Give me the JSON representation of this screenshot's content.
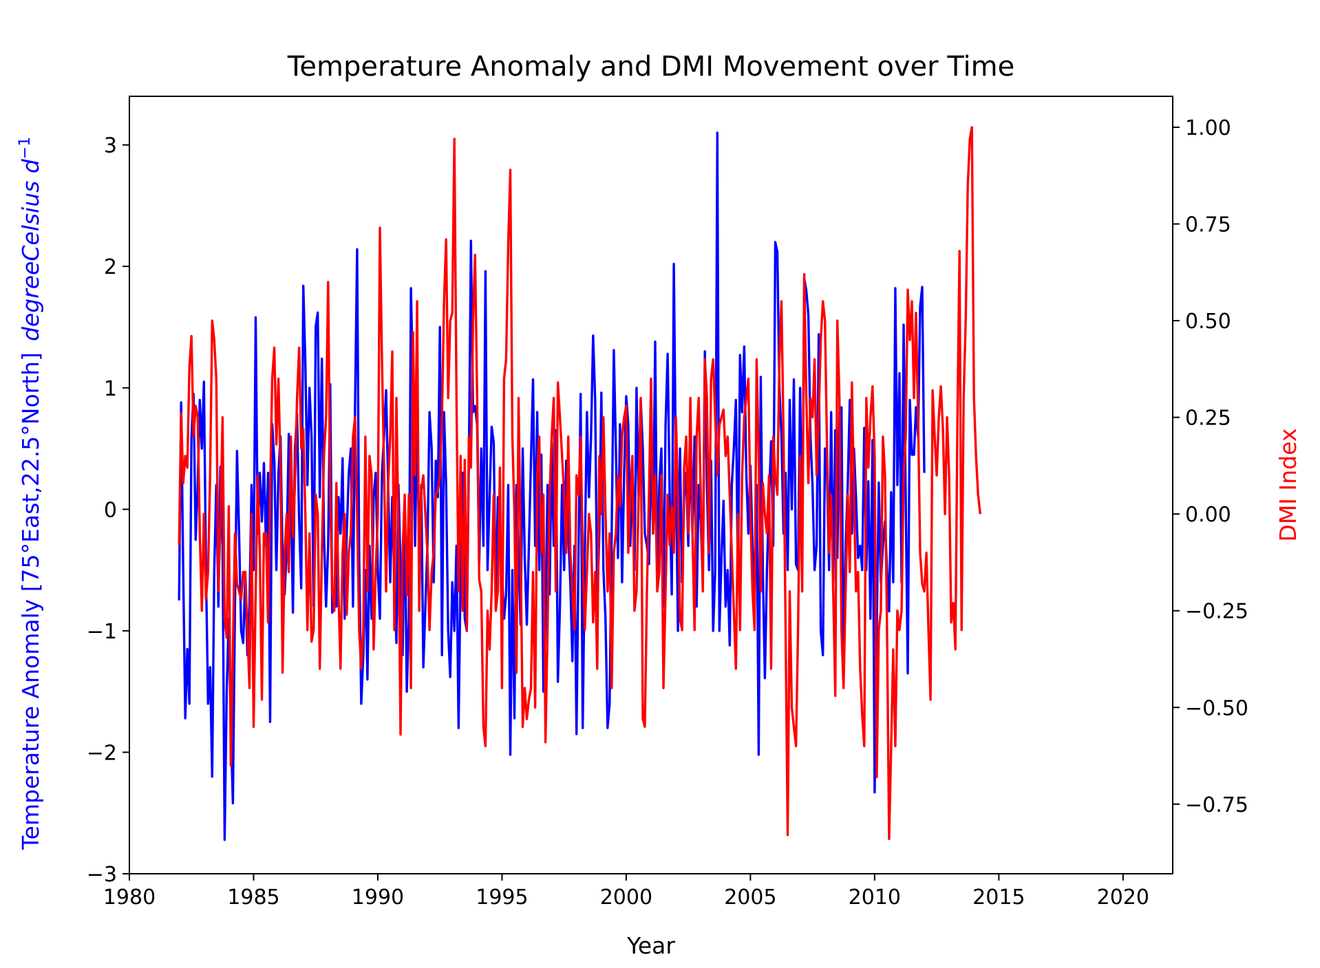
{
  "chart_data": {
    "type": "line",
    "title": "Temperature Anomaly and DMI Movement over Time",
    "xlabel": "Year",
    "ylabel_left": "Temperature Anomaly [75°East,22.5°North]",
    "ylabel_left_unit": "degreeCelsius d",
    "ylabel_left_unit_exp": "−1",
    "ylabel_right": "DMI Index",
    "xlim": [
      1980,
      2022
    ],
    "ylim_left": [
      -3,
      3.4
    ],
    "ylim_right": [
      -0.93,
      1.08
    ],
    "grid": false,
    "x_ticks": [
      1980,
      1985,
      1990,
      1995,
      2000,
      2005,
      2010,
      2015,
      2020
    ],
    "x_tick_labels": [
      "1980",
      "1985",
      "1990",
      "1995",
      "2000",
      "2005",
      "2010",
      "2015",
      "2020"
    ],
    "y_left_ticks": [
      -3,
      -2,
      -1,
      0,
      1,
      2,
      3
    ],
    "y_left_tick_labels": [
      "−3",
      "−2",
      "−1",
      "0",
      "1",
      "2",
      "3"
    ],
    "y_right_ticks": [
      -0.75,
      -0.5,
      -0.25,
      0,
      0.25,
      0.5,
      0.75,
      1.0
    ],
    "y_right_tick_labels": [
      "−0.75",
      "−0.50",
      "−0.25",
      "0.00",
      "0.25",
      "0.50",
      "0.75",
      "1.00"
    ],
    "series": [
      {
        "axis": "left",
        "color": "#0000ff",
        "x_start": 1982.0,
        "x_step": 0.083333,
        "values": [
          -0.75,
          0.88,
          -0.5,
          -1.72,
          -1.15,
          -1.6,
          0.6,
          0.95,
          -0.25,
          0.2,
          0.9,
          0.5,
          1.05,
          -0.5,
          -1.6,
          -1.3,
          -2.2,
          -0.5,
          0.2,
          -0.8,
          0.35,
          -0.3,
          -2.72,
          -1.5,
          -0.9,
          -1.8,
          -2.42,
          -0.8,
          0.48,
          -0.2,
          -1.0,
          -1.1,
          -0.55,
          -1.2,
          -0.8,
          0.2,
          -0.5,
          1.58,
          -0.2,
          0.3,
          -0.1,
          0.38,
          -0.3,
          0.3,
          -1.75,
          0.7,
          0.4,
          -0.5,
          0.3,
          0.6,
          -0.4,
          -0.7,
          -0.3,
          0.62,
          0.2,
          -0.85,
          0.5,
          0.78,
          -0.1,
          -0.65,
          1.84,
          1.2,
          0.2,
          1.0,
          0.6,
          -0.8,
          1.5,
          1.62,
          0.1,
          1.24,
          -0.2,
          -0.8,
          -0.3,
          1.03,
          -0.85,
          -0.75,
          -0.8,
          0.1,
          -0.2,
          0.42,
          -0.9,
          -0.2,
          0.3,
          0.5,
          -0.8,
          0.85,
          2.14,
          -0.4,
          -1.6,
          -1.2,
          -0.5,
          -1.4,
          -0.3,
          -0.9,
          0.1,
          0.3,
          -0.5,
          -0.9,
          0.3,
          0.6,
          0.98,
          0.2,
          -0.6,
          0.1,
          -0.6,
          -1.1,
          0.2,
          -0.5,
          -1.2,
          0.0,
          -1.5,
          -0.9,
          1.82,
          1.0,
          -0.3,
          0.8,
          -0.4,
          0.2,
          -1.3,
          -0.8,
          -0.3,
          0.8,
          0.5,
          -0.6,
          0.4,
          0.1,
          1.5,
          -1.2,
          0.8,
          0.2,
          -1.0,
          -1.38,
          -0.6,
          -1.0,
          -0.3,
          -1.8,
          -0.5,
          0.3,
          -0.9,
          -1.0,
          0.4,
          2.21,
          0.8,
          0.85,
          0.7,
          -0.45,
          0.5,
          -0.3,
          1.96,
          -0.5,
          0.1,
          0.68,
          0.55,
          -0.8,
          0.1,
          -0.3,
          -0.5,
          -0.9,
          -0.7,
          0.2,
          -2.02,
          -0.5,
          -1.72,
          0.2,
          -0.4,
          -0.95,
          0.5,
          -0.4,
          -0.95,
          -0.3,
          0.4,
          1.07,
          -0.3,
          0.8,
          -0.5,
          0.45,
          -1.5,
          -0.9,
          0.2,
          -0.7,
          0.55,
          -0.3,
          0.65,
          -1.42,
          -0.8,
          0.2,
          -0.5,
          0.4,
          -0.2,
          -0.6,
          -1.25,
          -0.3,
          -1.85,
          -0.3,
          0.95,
          -1.8,
          -0.4,
          0.8,
          0.1,
          0.6,
          1.43,
          0.9,
          -0.8,
          -0.2,
          0.96,
          -0.5,
          -0.9,
          -1.8,
          -1.6,
          -0.2,
          1.31,
          0.5,
          -0.4,
          0.7,
          -0.6,
          0.3,
          0.93,
          0.7,
          -0.3,
          0.4,
          -0.5,
          1.0,
          0.1,
          0.9,
          0.5,
          -0.2,
          -0.3,
          -0.45,
          0.5,
          -0.2,
          1.38,
          -0.6,
          0.2,
          0.5,
          -0.8,
          0.7,
          1.28,
          0.1,
          -0.7,
          2.02,
          0.3,
          -1.0,
          0.5,
          -0.6,
          0.1,
          0.3,
          -0.3,
          0.5,
          -0.2,
          0.6,
          -0.8,
          0.2,
          -0.1,
          -0.6,
          1.3,
          0.2,
          -0.5,
          0.4,
          -1.0,
          -0.5,
          3.1,
          -1.0,
          -0.4,
          0.07,
          -0.8,
          -0.5,
          -1.12,
          0.2,
          0.5,
          0.9,
          -0.6,
          1.27,
          0.8,
          1.34,
          0.3,
          -0.2,
          0.36,
          -0.3,
          -0.8,
          0.2,
          -2.02,
          1.09,
          -0.5,
          -1.39,
          -0.5,
          0.1,
          0.56,
          -0.3,
          2.2,
          2.12,
          1.0,
          0.6,
          -0.2,
          0.3,
          -0.5,
          0.9,
          0.0,
          1.07,
          -0.45,
          -0.5,
          1.0,
          -0.3,
          1.9,
          1.8,
          1.6,
          0.6,
          0.2,
          -0.5,
          -0.3,
          1.44,
          -1.0,
          -1.2,
          0.5,
          0.3,
          -0.5,
          0.8,
          -0.6,
          0.65,
          -0.4,
          0.8,
          0.84,
          -1.35,
          -0.3,
          0.2,
          0.9,
          -0.2,
          0.5,
          0.1,
          -0.4,
          -0.3,
          -0.5,
          0.67,
          -0.5,
          0.23,
          -0.9,
          0.57,
          -2.33,
          -1.0,
          0.22,
          -0.6,
          -0.3,
          -0.1,
          -0.5,
          -0.84,
          0.14,
          -0.6,
          1.82,
          0.2,
          1.12,
          -0.6,
          1.52,
          0.1,
          -1.35,
          0.9,
          0.45,
          0.45,
          0.84,
          0.6,
          1.67,
          1.83,
          0.3
        ]
      },
      {
        "axis": "right",
        "color": "#ff0000",
        "x_start": 1982.0,
        "x_step": 0.083333,
        "values": [
          -0.08,
          0.26,
          0.08,
          0.15,
          0.12,
          0.38,
          0.46,
          0.2,
          0.28,
          0.25,
          -0.05,
          -0.25,
          0.0,
          -0.22,
          -0.15,
          0.1,
          0.5,
          0.45,
          0.35,
          -0.2,
          -0.02,
          0.25,
          -0.27,
          -0.32,
          0.02,
          -0.65,
          -0.35,
          -0.05,
          -0.18,
          -0.2,
          -0.22,
          -0.15,
          -0.15,
          -0.3,
          -0.45,
          0.0,
          -0.55,
          -0.2,
          0.1,
          -0.1,
          -0.48,
          -0.05,
          -0.05,
          -0.28,
          0.05,
          0.35,
          0.43,
          0.18,
          0.35,
          0.12,
          -0.41,
          -0.1,
          0.0,
          -0.15,
          0.2,
          -0.06,
          0.08,
          0.3,
          0.43,
          0.17,
          0.22,
          0.0,
          -0.3,
          -0.05,
          -0.33,
          -0.3,
          0.05,
          0.0,
          -0.4,
          -0.1,
          0.15,
          0.25,
          0.6,
          0.05,
          -0.2,
          -0.25,
          0.08,
          -0.2,
          -0.4,
          -0.1,
          0.0,
          -0.26,
          -0.1,
          -0.05,
          0.2,
          0.25,
          0.0,
          -0.3,
          -0.4,
          -0.3,
          0.2,
          -0.2,
          0.15,
          0.1,
          -0.35,
          -0.15,
          0.0,
          0.74,
          0.4,
          0.12,
          -0.2,
          0.08,
          0.2,
          0.42,
          -0.3,
          0.3,
          -0.05,
          -0.57,
          -0.1,
          0.05,
          -0.21,
          0.05,
          -0.45,
          0.47,
          0.1,
          0.55,
          -0.25,
          0.06,
          0.1,
          0.0,
          -0.1,
          -0.3,
          -0.15,
          -0.1,
          0.05,
          0.06,
          0.1,
          0.25,
          0.55,
          0.71,
          0.3,
          0.5,
          0.52,
          0.97,
          0.3,
          -0.2,
          0.15,
          -0.25,
          0.14,
          -0.3,
          0.2,
          0.12,
          0.5,
          0.67,
          0.3,
          -0.17,
          -0.2,
          -0.55,
          -0.6,
          -0.25,
          -0.35,
          -0.2,
          0.05,
          -0.25,
          -0.2,
          0.12,
          -0.45,
          0.35,
          0.4,
          0.7,
          0.89,
          0.2,
          0.0,
          -0.41,
          0.3,
          -0.1,
          -0.55,
          -0.45,
          -0.53,
          -0.48,
          -0.45,
          -0.15,
          -0.5,
          0.1,
          0.2,
          -0.1,
          0.05,
          -0.59,
          -0.3,
          0.05,
          0.2,
          0.3,
          -0.2,
          0.34,
          0.25,
          0.15,
          0.05,
          -0.1,
          0.2,
          -0.1,
          -0.2,
          -0.3,
          0.1,
          0.05,
          0.2,
          -0.1,
          -0.3,
          -0.15,
          0.0,
          -0.05,
          -0.28,
          -0.15,
          -0.4,
          0.15,
          0.0,
          0.25,
          0.0,
          -0.2,
          -0.05,
          -0.45,
          -0.1,
          -0.05,
          0.1,
          0.02,
          0.2,
          0.25,
          0.28,
          -0.1,
          0.05,
          0.15,
          -0.25,
          -0.2,
          0.04,
          0.3,
          -0.53,
          -0.55,
          -0.2,
          0.05,
          0.35,
          -0.05,
          0.1,
          -0.2,
          -0.15,
          0.1,
          -0.45,
          -0.2,
          0.05,
          -0.08,
          0.02,
          -0.1,
          0.25,
          0.05,
          -0.27,
          -0.3,
          0.12,
          0.2,
          -0.05,
          0.3,
          -0.05,
          -0.3,
          0.2,
          0.3,
          0.05,
          -0.2,
          0.4,
          0.3,
          -0.1,
          0.35,
          0.4,
          0.25,
          0.1,
          0.23,
          0.25,
          0.27,
          0.15,
          0.2,
          0.05,
          -0.1,
          -0.25,
          -0.4,
          0.0,
          -0.3,
          0.1,
          0.25,
          0.3,
          0.35,
          0.0,
          -0.2,
          -0.3,
          0.4,
          0.15,
          -0.2,
          0.08,
          0.0,
          -0.05,
          0.1,
          -0.4,
          0.2,
          0.1,
          0.05,
          0.4,
          0.55,
          0.2,
          -0.3,
          -0.83,
          -0.2,
          -0.5,
          -0.55,
          -0.6,
          -0.3,
          0.15,
          -0.2,
          0.62,
          0.3,
          0.08,
          0.3,
          0.25,
          0.4,
          0.1,
          0.25,
          0.45,
          0.55,
          0.5,
          0.17,
          -0.1,
          0.05,
          -0.2,
          -0.47,
          0.5,
          0.3,
          -0.3,
          -0.45,
          -0.2,
          0.05,
          -0.15,
          0.34,
          0.05,
          -0.2,
          -0.15,
          -0.4,
          -0.52,
          -0.6,
          0.3,
          0.12,
          0.25,
          0.33,
          0.15,
          -0.68,
          -0.3,
          -0.25,
          0.2,
          0.1,
          -0.3,
          -0.84,
          -0.6,
          -0.35,
          -0.6,
          -0.25,
          -0.3,
          -0.25,
          0.1,
          0.2,
          0.58,
          0.45,
          0.55,
          0.3,
          0.52,
          0.25,
          -0.1,
          -0.18,
          -0.2,
          -0.1,
          -0.3,
          -0.48,
          0.32,
          0.2,
          0.1,
          0.25,
          0.33,
          0.22,
          0.0,
          0.25,
          0.1,
          -0.28,
          -0.23,
          -0.35,
          0.25,
          0.68,
          -0.3,
          0.3,
          0.5,
          0.85,
          0.97,
          1.0,
          0.3,
          0.15,
          0.05,
          0.0
        ]
      }
    ]
  }
}
